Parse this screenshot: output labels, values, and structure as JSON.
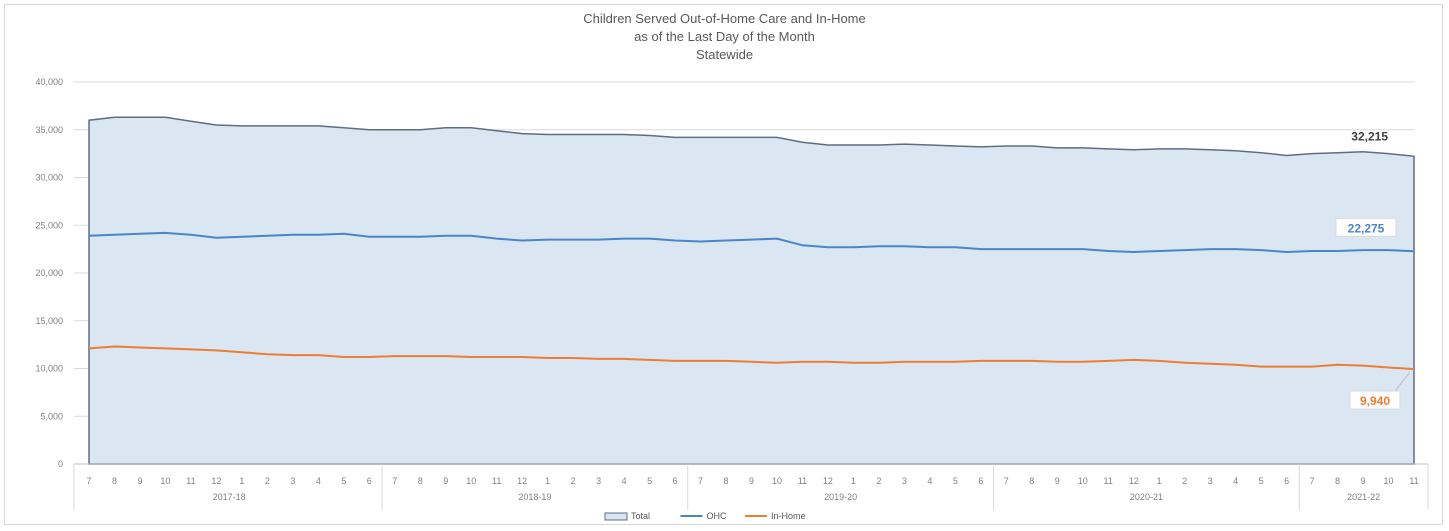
{
  "chart_data": {
    "type": "area",
    "title_lines": [
      "Children Served Out-of-Home Care and In-Home",
      "as of the Last Day of the Month",
      "Statewide"
    ],
    "xlabel": "",
    "ylabel": "",
    "ylim": [
      0,
      40000
    ],
    "y_ticks": [
      "0",
      "5,000",
      "10,000",
      "15,000",
      "20,000",
      "25,000",
      "30,000",
      "35,000",
      "40,000"
    ],
    "y_tick_values": [
      0,
      5000,
      10000,
      15000,
      20000,
      25000,
      30000,
      35000,
      40000
    ],
    "month_labels": [
      "7",
      "8",
      "9",
      "10",
      "11",
      "12",
      "1",
      "2",
      "3",
      "4",
      "5",
      "6",
      "7",
      "8",
      "9",
      "10",
      "11",
      "12",
      "1",
      "2",
      "3",
      "4",
      "5",
      "6",
      "7",
      "8",
      "9",
      "10",
      "11",
      "12",
      "1",
      "2",
      "3",
      "4",
      "5",
      "6",
      "7",
      "8",
      "9",
      "10",
      "11",
      "12",
      "1",
      "2",
      "3",
      "4",
      "5",
      "6",
      "7",
      "8",
      "9",
      "10",
      "11"
    ],
    "fiscal_years": [
      {
        "label": "2017-18",
        "months": 12
      },
      {
        "label": "2018-19",
        "months": 12
      },
      {
        "label": "2019-20",
        "months": 12
      },
      {
        "label": "2020-21",
        "months": 12
      },
      {
        "label": "2021-22",
        "months": 5
      }
    ],
    "grid": true,
    "legend_position": "bottom",
    "series": [
      {
        "name": "Total",
        "type": "area",
        "color": "#dae6f2",
        "values": [
          36000,
          36300,
          36300,
          36300,
          35900,
          35500,
          35400,
          35400,
          35400,
          35400,
          35200,
          35000,
          35000,
          35000,
          35200,
          35200,
          34900,
          34600,
          34500,
          34500,
          34500,
          34500,
          34400,
          34200,
          34200,
          34200,
          34200,
          34200,
          33700,
          33400,
          33400,
          33400,
          33500,
          33400,
          33300,
          33200,
          33300,
          33300,
          33100,
          33100,
          33000,
          32900,
          33000,
          33000,
          32900,
          32800,
          32600,
          32300,
          32500,
          32600,
          32700,
          32500,
          32215
        ]
      },
      {
        "name": "OHC",
        "type": "line",
        "color": "#4a86c7",
        "values": [
          23900,
          24000,
          24100,
          24200,
          24000,
          23700,
          23800,
          23900,
          24000,
          24000,
          24100,
          23800,
          23800,
          23800,
          23900,
          23900,
          23600,
          23400,
          23500,
          23500,
          23500,
          23600,
          23600,
          23400,
          23300,
          23400,
          23500,
          23600,
          22900,
          22700,
          22700,
          22800,
          22800,
          22700,
          22700,
          22500,
          22500,
          22500,
          22500,
          22500,
          22300,
          22200,
          22300,
          22400,
          22500,
          22500,
          22400,
          22200,
          22300,
          22300,
          22400,
          22400,
          22275
        ]
      },
      {
        "name": "In-Home",
        "type": "line",
        "color": "#ed7d31",
        "values": [
          12100,
          12300,
          12200,
          12100,
          12000,
          11900,
          11700,
          11500,
          11400,
          11400,
          11200,
          11200,
          11300,
          11300,
          11300,
          11200,
          11200,
          11200,
          11100,
          11100,
          11000,
          11000,
          10900,
          10800,
          10800,
          10800,
          10700,
          10600,
          10700,
          10700,
          10600,
          10600,
          10700,
          10700,
          10700,
          10800,
          10800,
          10800,
          10700,
          10700,
          10800,
          10900,
          10800,
          10600,
          10500,
          10400,
          10200,
          10200,
          10200,
          10400,
          10300,
          10100,
          9940
        ]
      }
    ],
    "data_labels": [
      {
        "series": "Total",
        "text": "32,215",
        "color": "#404040"
      },
      {
        "series": "OHC",
        "text": "22,275",
        "color": "#4a86c7"
      },
      {
        "series": "In-Home",
        "text": "9,940",
        "color": "#ed7d31"
      }
    ]
  }
}
